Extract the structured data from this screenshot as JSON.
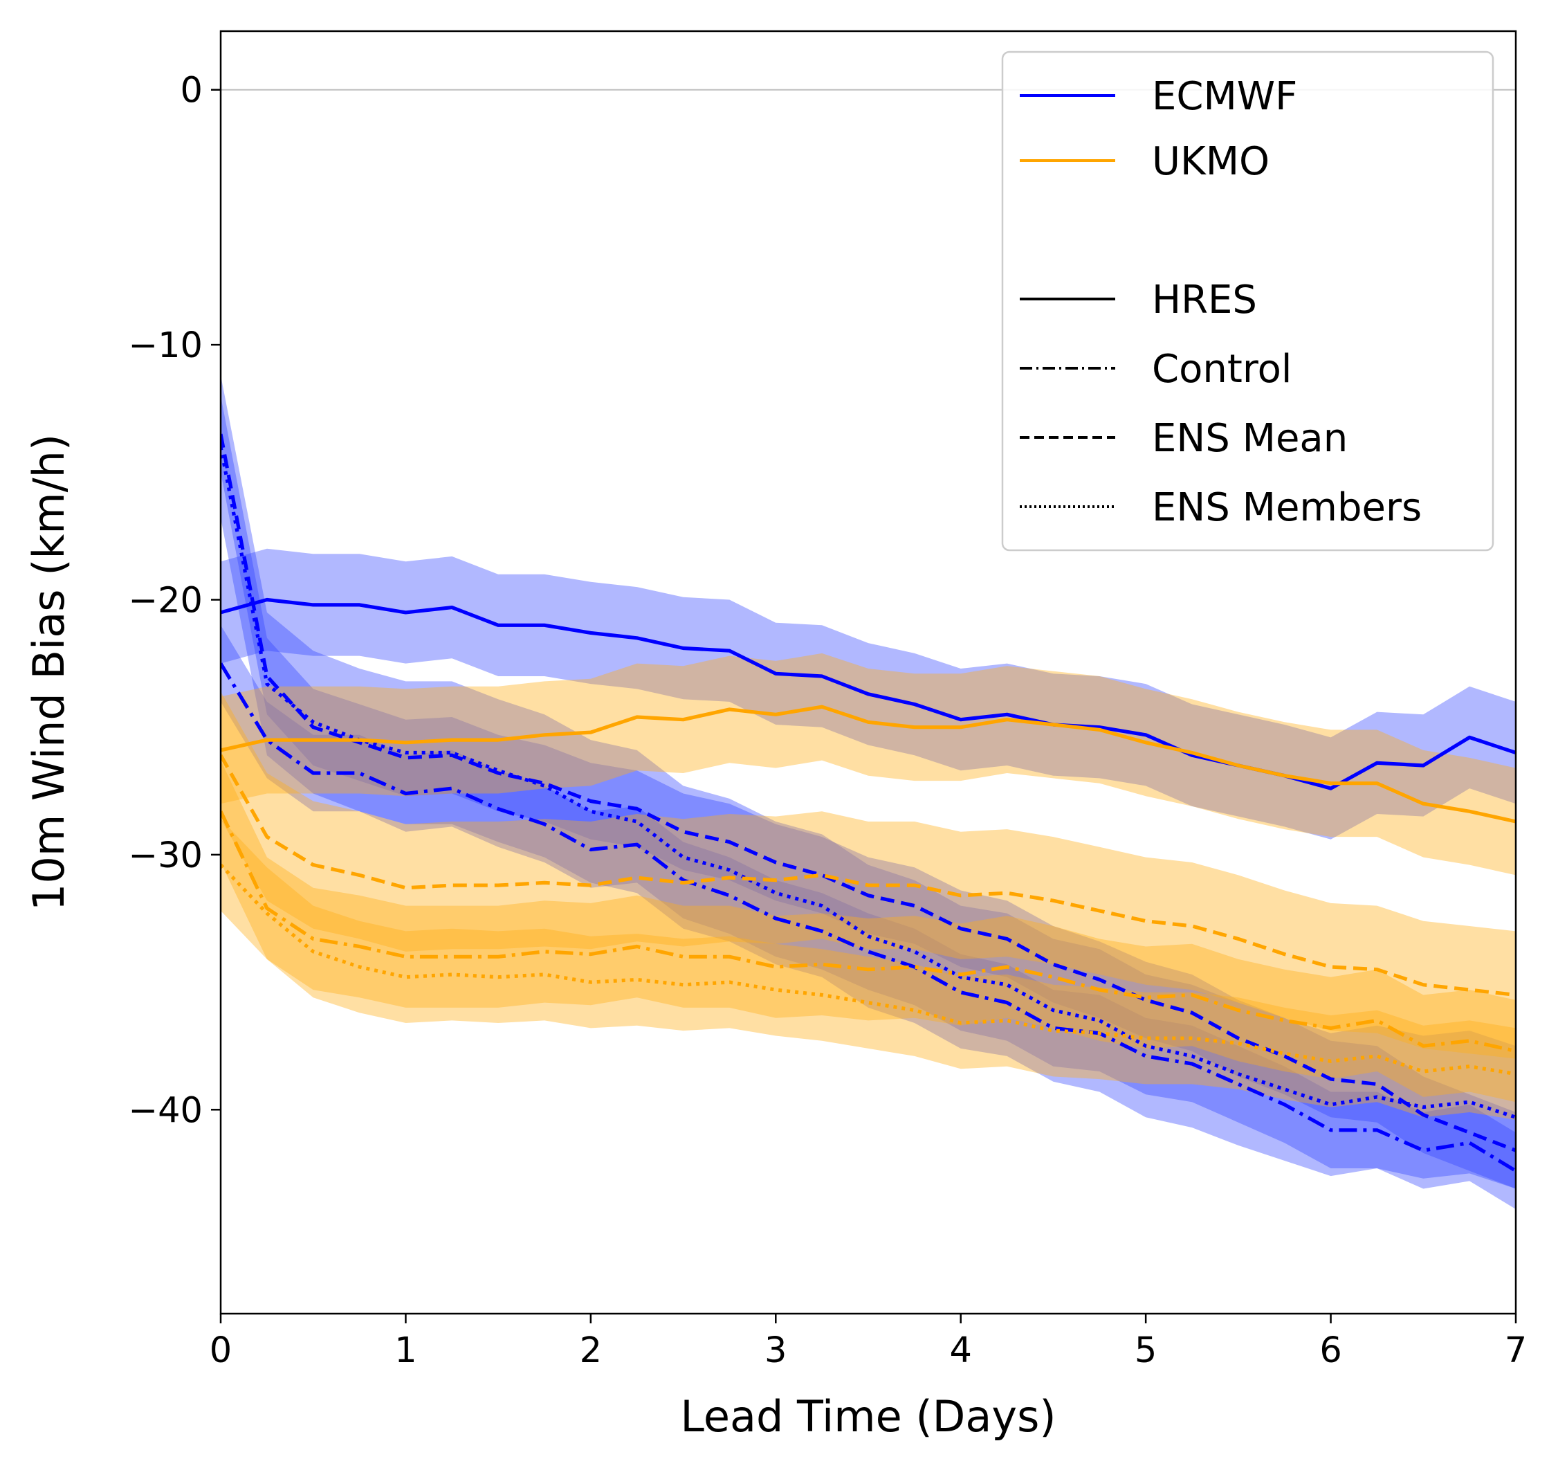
{
  "chart_data": {
    "type": "line",
    "title": "",
    "xlabel": "Lead Time (Days)",
    "ylabel": "10m Wind Bias (km/h)",
    "xlim": [
      0,
      7
    ],
    "ylim": [
      -48,
      2.3
    ],
    "xticks": [
      {
        "value": 0,
        "label": "0"
      },
      {
        "value": 1,
        "label": "1"
      },
      {
        "value": 2,
        "label": "2"
      },
      {
        "value": 3,
        "label": "3"
      },
      {
        "value": 4,
        "label": "4"
      },
      {
        "value": 5,
        "label": "5"
      },
      {
        "value": 6,
        "label": "6"
      },
      {
        "value": 7,
        "label": "7"
      }
    ],
    "yticks": [
      {
        "value": 0,
        "label": "0"
      },
      {
        "value": -10,
        "label": "−10"
      },
      {
        "value": -20,
        "label": "−20"
      },
      {
        "value": -30,
        "label": "−30"
      },
      {
        "value": -40,
        "label": "−40"
      }
    ],
    "reference_line": {
      "y": 0,
      "color": "#bfbfbf"
    },
    "grid": false,
    "legend_position": "top-right",
    "legend": {
      "models": [
        {
          "label": "ECMWF",
          "color": "#0000ff"
        },
        {
          "label": "UKMO",
          "color": "#ffa500"
        }
      ],
      "styles": [
        {
          "label": "HRES",
          "dash": "solid"
        },
        {
          "label": "Control",
          "dash": "dashdot"
        },
        {
          "label": "ENS Mean",
          "dash": "dashed"
        },
        {
          "label": "ENS Members",
          "dash": "dotted"
        }
      ]
    },
    "x": [
      0,
      0.25,
      0.5,
      0.75,
      1,
      1.25,
      1.5,
      1.75,
      2,
      2.25,
      2.5,
      2.75,
      3,
      3.25,
      3.5,
      3.75,
      4,
      4.25,
      4.5,
      4.75,
      5,
      5.25,
      5.5,
      5.75,
      6,
      6.25,
      6.5,
      6.75,
      7
    ],
    "series": [
      {
        "model": "ECMWF",
        "kind": "HRES",
        "color": "#0000ff",
        "dash": "solid",
        "band_half_width": 2.0,
        "values": [
          -20.5,
          -20.0,
          -20.2,
          -20.2,
          -20.5,
          -20.3,
          -21.0,
          -21.0,
          -21.3,
          -21.5,
          -21.9,
          -22.0,
          -22.9,
          -23.0,
          -23.7,
          -24.1,
          -24.7,
          -24.5,
          -24.9,
          -25.0,
          -25.3,
          -26.1,
          -26.5,
          -26.9,
          -27.4,
          -26.4,
          -26.5,
          -25.4,
          -26.0
        ]
      },
      {
        "model": "ECMWF",
        "kind": "Control",
        "color": "#0000ff",
        "dash": "dashdot",
        "band_half_width": 1.5,
        "values": [
          -22.5,
          -25.5,
          -26.8,
          -26.8,
          -27.6,
          -27.4,
          -28.2,
          -28.8,
          -29.8,
          -29.6,
          -31.0,
          -31.6,
          -32.5,
          -33.0,
          -33.8,
          -34.4,
          -35.4,
          -35.8,
          -36.8,
          -37.0,
          -37.9,
          -38.2,
          -39.0,
          -39.8,
          -40.8,
          -40.8,
          -41.6,
          -41.3,
          -42.4
        ]
      },
      {
        "model": "ECMWF",
        "kind": "ENS Mean",
        "color": "#0000ff",
        "dash": "dashed",
        "band_half_width": 1.5,
        "values": [
          -13.5,
          -23.0,
          -25.0,
          -25.6,
          -26.2,
          -26.1,
          -26.8,
          -27.2,
          -27.9,
          -28.2,
          -29.1,
          -29.5,
          -30.3,
          -30.8,
          -31.6,
          -32.0,
          -32.9,
          -33.3,
          -34.3,
          -34.9,
          -35.7,
          -36.2,
          -37.2,
          -37.9,
          -38.8,
          -39.0,
          -40.2,
          -40.9,
          -41.6
        ]
      },
      {
        "model": "ECMWF",
        "kind": "ENS Members",
        "color": "#0000ff",
        "dash": "dotted",
        "band_half_width": 2.8,
        "values": [
          -14.0,
          -23.3,
          -24.8,
          -25.5,
          -26.0,
          -26.0,
          -26.7,
          -27.3,
          -28.3,
          -28.7,
          -30.1,
          -30.6,
          -31.5,
          -32.0,
          -33.2,
          -33.8,
          -34.8,
          -35.1,
          -36.1,
          -36.5,
          -37.5,
          -37.9,
          -38.6,
          -39.2,
          -39.8,
          -39.5,
          -39.9,
          -39.7,
          -40.3
        ]
      },
      {
        "model": "UKMO",
        "kind": "HRES",
        "color": "#ffa500",
        "dash": "solid",
        "band_half_width": 2.1,
        "values": [
          -25.9,
          -25.5,
          -25.5,
          -25.5,
          -25.6,
          -25.5,
          -25.5,
          -25.3,
          -25.2,
          -24.6,
          -24.7,
          -24.3,
          -24.5,
          -24.2,
          -24.8,
          -25.0,
          -25.0,
          -24.7,
          -24.9,
          -25.1,
          -25.6,
          -26.0,
          -26.5,
          -26.9,
          -27.2,
          -27.2,
          -28.0,
          -28.3,
          -28.7
        ]
      },
      {
        "model": "UKMO",
        "kind": "Control",
        "color": "#ffa500",
        "dash": "dashdot",
        "band_half_width": 2.0,
        "values": [
          -28.3,
          -32.1,
          -33.3,
          -33.6,
          -34.0,
          -34.0,
          -34.0,
          -33.8,
          -33.9,
          -33.6,
          -34.0,
          -34.0,
          -34.4,
          -34.3,
          -34.5,
          -34.4,
          -34.7,
          -34.4,
          -34.8,
          -35.3,
          -35.6,
          -35.5,
          -36.1,
          -36.5,
          -36.8,
          -36.5,
          -37.5,
          -37.3,
          -37.7
        ]
      },
      {
        "model": "UKMO",
        "kind": "ENS Mean",
        "color": "#ffa500",
        "dash": "dashed",
        "band_half_width": 2.5,
        "values": [
          -26.1,
          -29.3,
          -30.4,
          -30.8,
          -31.3,
          -31.2,
          -31.2,
          -31.1,
          -31.2,
          -30.9,
          -31.1,
          -30.9,
          -31.0,
          -30.8,
          -31.2,
          -31.2,
          -31.6,
          -31.5,
          -31.8,
          -32.2,
          -32.6,
          -32.8,
          -33.3,
          -33.9,
          -34.4,
          -34.5,
          -35.1,
          -35.3,
          -35.5
        ]
      },
      {
        "model": "UKMO",
        "kind": "ENS Members",
        "color": "#ffa500",
        "dash": "dotted",
        "band_half_width": 1.8,
        "values": [
          -30.4,
          -32.3,
          -33.8,
          -34.4,
          -34.8,
          -34.7,
          -34.8,
          -34.7,
          -35.0,
          -34.9,
          -35.1,
          -35.0,
          -35.3,
          -35.5,
          -35.8,
          -36.1,
          -36.6,
          -36.5,
          -36.9,
          -37.0,
          -37.2,
          -37.2,
          -37.4,
          -37.8,
          -38.1,
          -37.9,
          -38.5,
          -38.3,
          -38.6
        ]
      }
    ]
  }
}
